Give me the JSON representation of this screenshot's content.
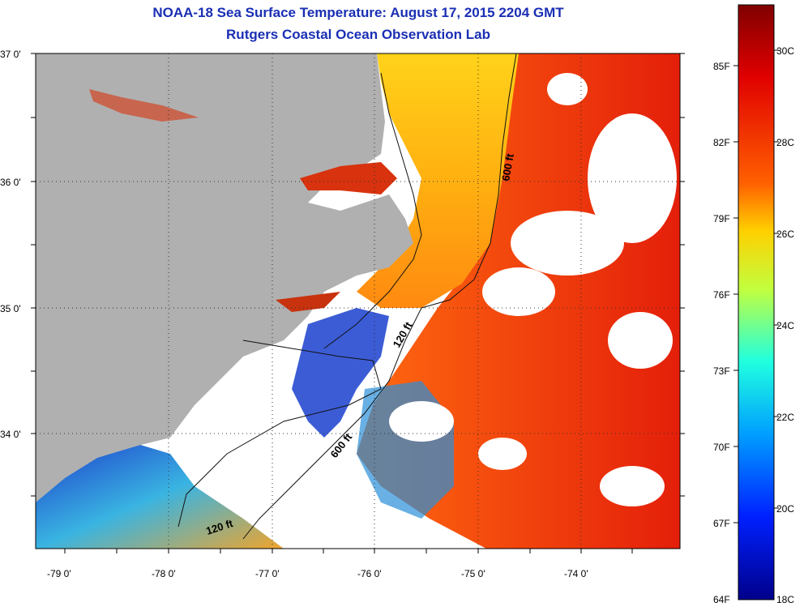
{
  "title": {
    "line1": "NOAA-18 Sea Surface Temperature:  August 17, 2015 2204 GMT",
    "line2": "Rutgers Coastal Ocean Observation Lab"
  },
  "axes": {
    "lat_ticks": [
      "37 0'",
      "36 0'",
      "35 0'",
      "34 0'"
    ],
    "lon_ticks": [
      "-79 0'",
      "-78 0'",
      "-77 0'",
      "-76 0'",
      "-75 0'",
      "-74 0'"
    ]
  },
  "isobaths": {
    "shelf_north": "600 ft",
    "inner_120": "120 ft",
    "shelf_south": "600 ft",
    "inner_120_south": "120 ft"
  },
  "colorbar": {
    "fahrenheit": [
      "85F",
      "82F",
      "79F",
      "76F",
      "73F",
      "70F",
      "67F",
      "64F"
    ],
    "celsius": [
      "30C",
      "28C",
      "26C",
      "24C",
      "22C",
      "20C",
      "18C"
    ]
  },
  "colors": {
    "title": "#1a2fb4",
    "land": "#b0b0b0",
    "warm": "#e8320f",
    "cold": "#0a1a9a"
  }
}
